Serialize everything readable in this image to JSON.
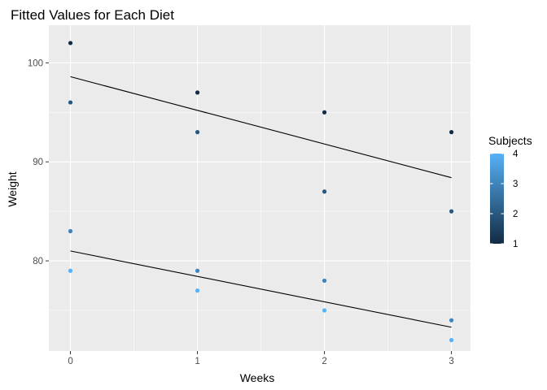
{
  "chart_data": {
    "type": "scatter",
    "title": "Fitted Values for Each Diet",
    "xlabel": "Weeks",
    "ylabel": "Weight",
    "xlim": [
      -0.17,
      3.15
    ],
    "ylim": [
      70.9,
      103.8
    ],
    "xticks": [
      0,
      1,
      2,
      3
    ],
    "yticks": [
      80,
      90,
      100
    ],
    "grid": true,
    "legend": {
      "title": "Subjects",
      "position": "right",
      "ticks": [
        1,
        2,
        3,
        4
      ],
      "range": [
        1,
        4
      ],
      "colors": {
        "low": "#132b43",
        "high": "#56b1f7"
      }
    },
    "points": [
      {
        "x": 0,
        "y": 102,
        "subject": 1
      },
      {
        "x": 1,
        "y": 97,
        "subject": 1
      },
      {
        "x": 2,
        "y": 95,
        "subject": 1
      },
      {
        "x": 3,
        "y": 93,
        "subject": 1
      },
      {
        "x": 0,
        "y": 96,
        "subject": 2
      },
      {
        "x": 1,
        "y": 93,
        "subject": 2
      },
      {
        "x": 2,
        "y": 87,
        "subject": 2
      },
      {
        "x": 3,
        "y": 85,
        "subject": 2
      },
      {
        "x": 0,
        "y": 83,
        "subject": 3
      },
      {
        "x": 1,
        "y": 79,
        "subject": 3
      },
      {
        "x": 2,
        "y": 78,
        "subject": 3
      },
      {
        "x": 3,
        "y": 74,
        "subject": 3
      },
      {
        "x": 0,
        "y": 79,
        "subject": 4
      },
      {
        "x": 1,
        "y": 77,
        "subject": 4
      },
      {
        "x": 2,
        "y": 75,
        "subject": 4
      },
      {
        "x": 3,
        "y": 72,
        "subject": 4
      }
    ],
    "fitted_lines": [
      {
        "x": [
          0,
          3
        ],
        "y": [
          98.6,
          88.4
        ]
      },
      {
        "x": [
          0,
          3
        ],
        "y": [
          81.0,
          73.3
        ]
      }
    ]
  }
}
